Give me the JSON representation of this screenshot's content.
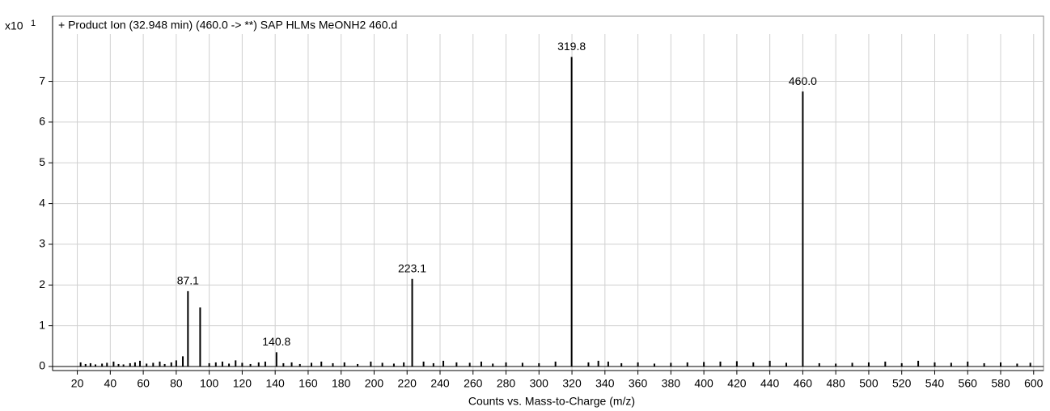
{
  "chart_data": {
    "type": "stem",
    "title": "+ Product Ion (32.948 min) (460.0 -> **) SAP HLMs MeONH2 460.d",
    "y_multiplier": "x10",
    "y_exponent": "1",
    "xlabel": "Counts vs. Mass-to-Charge (m/z)",
    "x": [
      87.1,
      94.5,
      140.8,
      223.1,
      319.8,
      460.0
    ],
    "values": [
      1.85,
      1.45,
      0.35,
      2.15,
      7.6,
      6.75
    ],
    "point_labels": [
      "87.1",
      null,
      "140.8",
      "223.1",
      "319.8",
      "460.0"
    ],
    "noise": {
      "x": [
        22,
        25,
        28,
        31,
        35,
        38,
        42,
        45,
        48,
        52,
        55,
        58,
        62,
        66,
        70,
        73,
        77,
        80,
        84,
        100,
        104,
        108,
        112,
        116,
        120,
        125,
        130,
        134,
        145,
        150,
        155,
        162,
        168,
        175,
        182,
        190,
        198,
        205,
        212,
        218,
        230,
        236,
        242,
        250,
        258,
        265,
        272,
        280,
        290,
        300,
        310,
        330,
        336,
        342,
        350,
        360,
        370,
        380,
        390,
        400,
        410,
        420,
        430,
        440,
        450,
        470,
        480,
        490,
        500,
        510,
        520,
        530,
        540,
        550,
        560,
        570,
        580,
        590,
        598
      ],
      "values": [
        0.1,
        0.06,
        0.08,
        0.05,
        0.07,
        0.09,
        0.12,
        0.06,
        0.05,
        0.08,
        0.1,
        0.14,
        0.07,
        0.09,
        0.12,
        0.06,
        0.1,
        0.15,
        0.25,
        0.08,
        0.1,
        0.12,
        0.07,
        0.15,
        0.09,
        0.06,
        0.1,
        0.12,
        0.08,
        0.1,
        0.06,
        0.09,
        0.12,
        0.08,
        0.1,
        0.06,
        0.12,
        0.09,
        0.07,
        0.1,
        0.12,
        0.08,
        0.14,
        0.1,
        0.09,
        0.12,
        0.07,
        0.1,
        0.09,
        0.08,
        0.12,
        0.1,
        0.14,
        0.12,
        0.08,
        0.1,
        0.07,
        0.09,
        0.1,
        0.11,
        0.12,
        0.13,
        0.1,
        0.14,
        0.09,
        0.08,
        0.07,
        0.09,
        0.1,
        0.12,
        0.08,
        0.14,
        0.1,
        0.09,
        0.12,
        0.08,
        0.1,
        0.07,
        0.09
      ]
    },
    "color": "#000000",
    "xlim": [
      5,
      606
    ],
    "ylim": [
      -0.1,
      8.6
    ],
    "xticks": [
      20,
      40,
      60,
      80,
      100,
      120,
      140,
      160,
      180,
      200,
      220,
      240,
      260,
      280,
      300,
      320,
      340,
      360,
      380,
      400,
      420,
      440,
      460,
      480,
      500,
      520,
      540,
      560,
      580,
      600
    ],
    "yticks": [
      0,
      1,
      2,
      3,
      4,
      5,
      6,
      7
    ],
    "grid": true
  }
}
